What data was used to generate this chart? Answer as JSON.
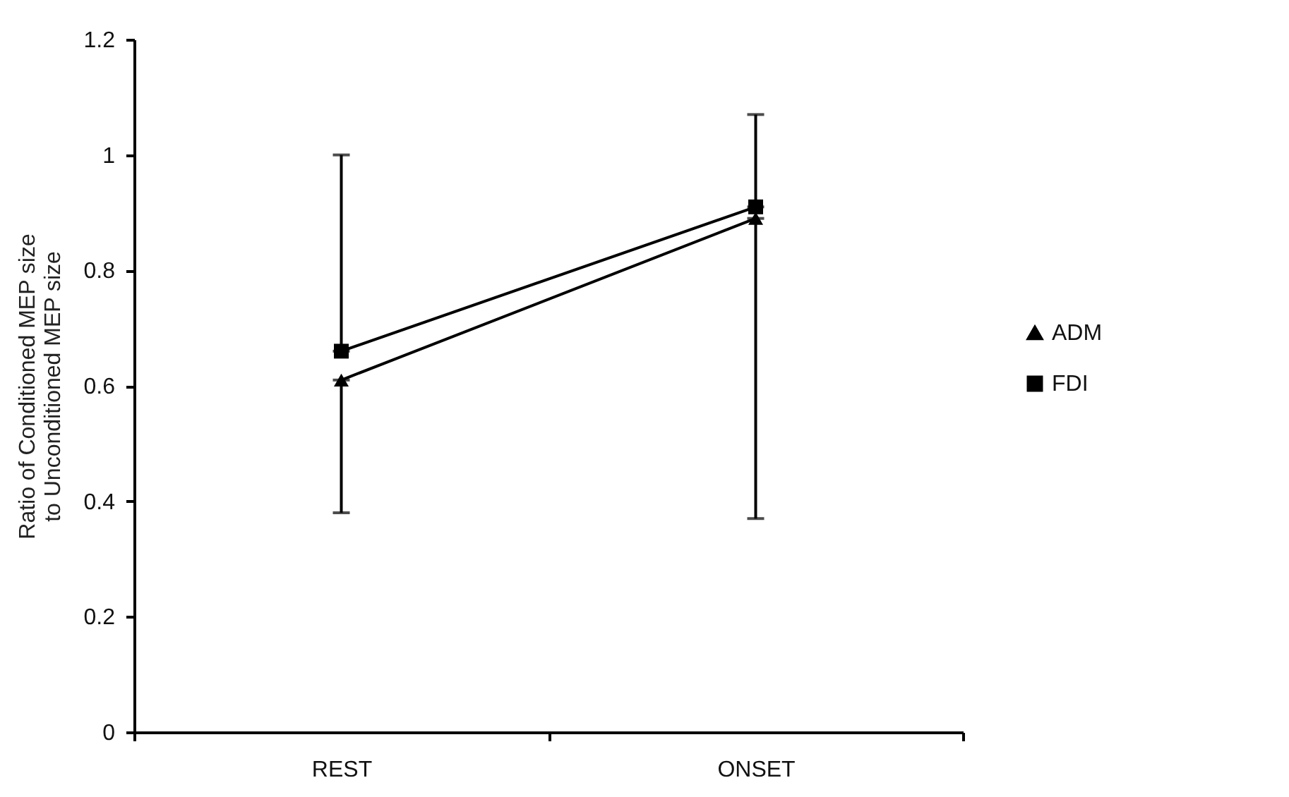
{
  "chart_data": {
    "type": "line",
    "ylabel": "Ratio of Conditioned MEP size to Unconditioned MEP size",
    "categories": [
      "REST",
      "ONSET"
    ],
    "series": [
      {
        "name": "ADM",
        "color": "#000000",
        "marker": "triangle",
        "values": [
          0.61,
          0.89
        ],
        "errors": [
          [
            0.38,
            0.61
          ],
          [
            0.37,
            0.89
          ]
        ]
      },
      {
        "name": "FDI",
        "color": "#000000",
        "marker": "square",
        "values": [
          0.66,
          0.91
        ],
        "errors": [
          [
            0.66,
            1.0
          ],
          [
            0.91,
            1.07
          ]
        ]
      }
    ],
    "ylim": [
      0,
      1.2
    ],
    "yticks": [
      0,
      0.2,
      0.4,
      0.6,
      0.8,
      1,
      1.2
    ],
    "grid": false,
    "legend": "right",
    "line_style": "solid"
  }
}
